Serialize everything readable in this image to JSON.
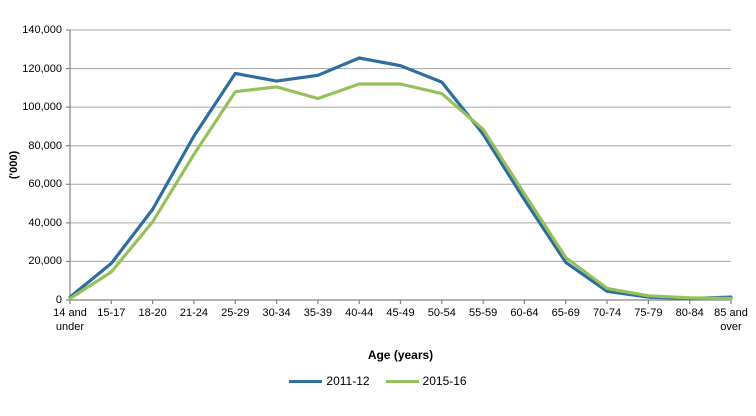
{
  "chart_data": {
    "type": "line",
    "title": "",
    "xlabel": "Age (years)",
    "ylabel": "('000)",
    "categories": [
      "14 and under",
      "15-17",
      "18-20",
      "21-24",
      "25-29",
      "30-34",
      "35-39",
      "40-44",
      "45-49",
      "50-54",
      "55-59",
      "60-64",
      "65-69",
      "70-74",
      "75-79",
      "80-84",
      "85 and over"
    ],
    "series": [
      {
        "name": "2011-12",
        "color": "#2E6D9E",
        "values": [
          1500,
          19000,
          47000,
          85000,
          117500,
          113500,
          116500,
          125500,
          121500,
          113000,
          86000,
          52000,
          19500,
          4500,
          1500,
          800,
          1500
        ]
      },
      {
        "name": "2015-16",
        "color": "#95C05B",
        "values": [
          800,
          14500,
          40500,
          75500,
          108000,
          110500,
          104500,
          112000,
          112000,
          107000,
          88500,
          55000,
          22000,
          6000,
          2200,
          1100,
          800
        ]
      }
    ],
    "ylim": [
      0,
      140000
    ],
    "ytick_step": 20000,
    "y_tick_labels": [
      "0",
      "20,000",
      "40,000",
      "60,000",
      "80,000",
      "100,000",
      "120,000",
      "140,000"
    ],
    "grid": true,
    "legend_position": "bottom"
  },
  "style_colors": {
    "grid": "#A6A6A6",
    "axis": "#848484",
    "text": "#000000",
    "background": "#FFFFFF"
  }
}
